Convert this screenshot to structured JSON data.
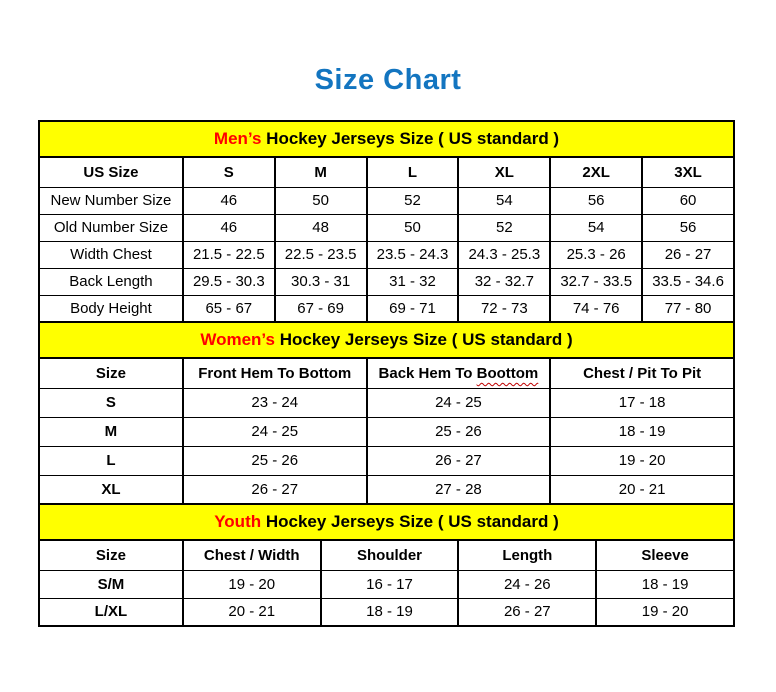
{
  "page": {
    "title": "Size Chart"
  },
  "colors": {
    "title_blue": "#1375C0",
    "section_header_yellow": "#FFFF00",
    "accent_red": "#FF0000",
    "squiggle_red": "#C00000",
    "border_black": "#000000"
  },
  "chart_data": [
    {
      "type": "table",
      "id": "mens",
      "title": "Men’s Hockey Jerseys Size ( US standard )",
      "title_highlight": "Men’s",
      "title_rest": " Hockey Jerseys Size ( US standard )",
      "columns": [
        "US Size",
        "S",
        "M",
        "L",
        "XL",
        "2XL",
        "3XL"
      ],
      "rows": [
        {
          "label": "New Number Size",
          "values": [
            "46",
            "50",
            "52",
            "54",
            "56",
            "60"
          ]
        },
        {
          "label": "Old Number Size",
          "values": [
            "46",
            "48",
            "50",
            "52",
            "54",
            "56"
          ]
        },
        {
          "label": "Width Chest",
          "values": [
            "21.5 - 22.5",
            "22.5 - 23.5",
            "23.5 - 24.3",
            "24.3 - 25.3",
            "25.3 - 26",
            "26 - 27"
          ]
        },
        {
          "label": "Back Length",
          "values": [
            "29.5 - 30.3",
            "30.3 - 31",
            "31 - 32",
            "32 - 32.7",
            "32.7 - 33.5",
            "33.5 - 34.6"
          ]
        },
        {
          "label": "Body Height",
          "values": [
            "65 - 67",
            "67 - 69",
            "69 - 71",
            "72 - 73",
            "74 - 76",
            "77 - 80"
          ]
        }
      ]
    },
    {
      "type": "table",
      "id": "womens",
      "title": "Women’s Hockey Jerseys Size ( US standard )",
      "title_highlight": "Women’s",
      "title_rest": " Hockey Jerseys Size ( US standard )",
      "columns": [
        "Size",
        "Front Hem To Bottom",
        "Back Hem To Boottom",
        "Chest / Pit To Pit"
      ],
      "squiggle": {
        "column_index": 2,
        "prefix": "Back Hem To ",
        "word": "Boottom"
      },
      "rows": [
        {
          "label": "S",
          "values": [
            "23 - 24",
            "24 - 25",
            "17 - 18"
          ]
        },
        {
          "label": "M",
          "values": [
            "24 - 25",
            "25 - 26",
            "18 - 19"
          ]
        },
        {
          "label": "L",
          "values": [
            "25 - 26",
            "26 - 27",
            "19 - 20"
          ]
        },
        {
          "label": "XL",
          "values": [
            "26 - 27",
            "27 - 28",
            "20 - 21"
          ]
        }
      ]
    },
    {
      "type": "table",
      "id": "youth",
      "title": "Youth Hockey Jerseys Size ( US standard )",
      "title_highlight": "Youth",
      "title_rest": " Hockey Jerseys Size ( US standard )",
      "columns": [
        "Size",
        "Chest / Width",
        "Shoulder",
        "Length",
        "Sleeve"
      ],
      "rows": [
        {
          "label": "S/M",
          "values": [
            "19 - 20",
            "16 - 17",
            "24 - 26",
            "18 - 19"
          ]
        },
        {
          "label": "L/XL",
          "values": [
            "20 - 21",
            "18 - 19",
            "26 - 27",
            "19 - 20"
          ]
        }
      ]
    }
  ]
}
